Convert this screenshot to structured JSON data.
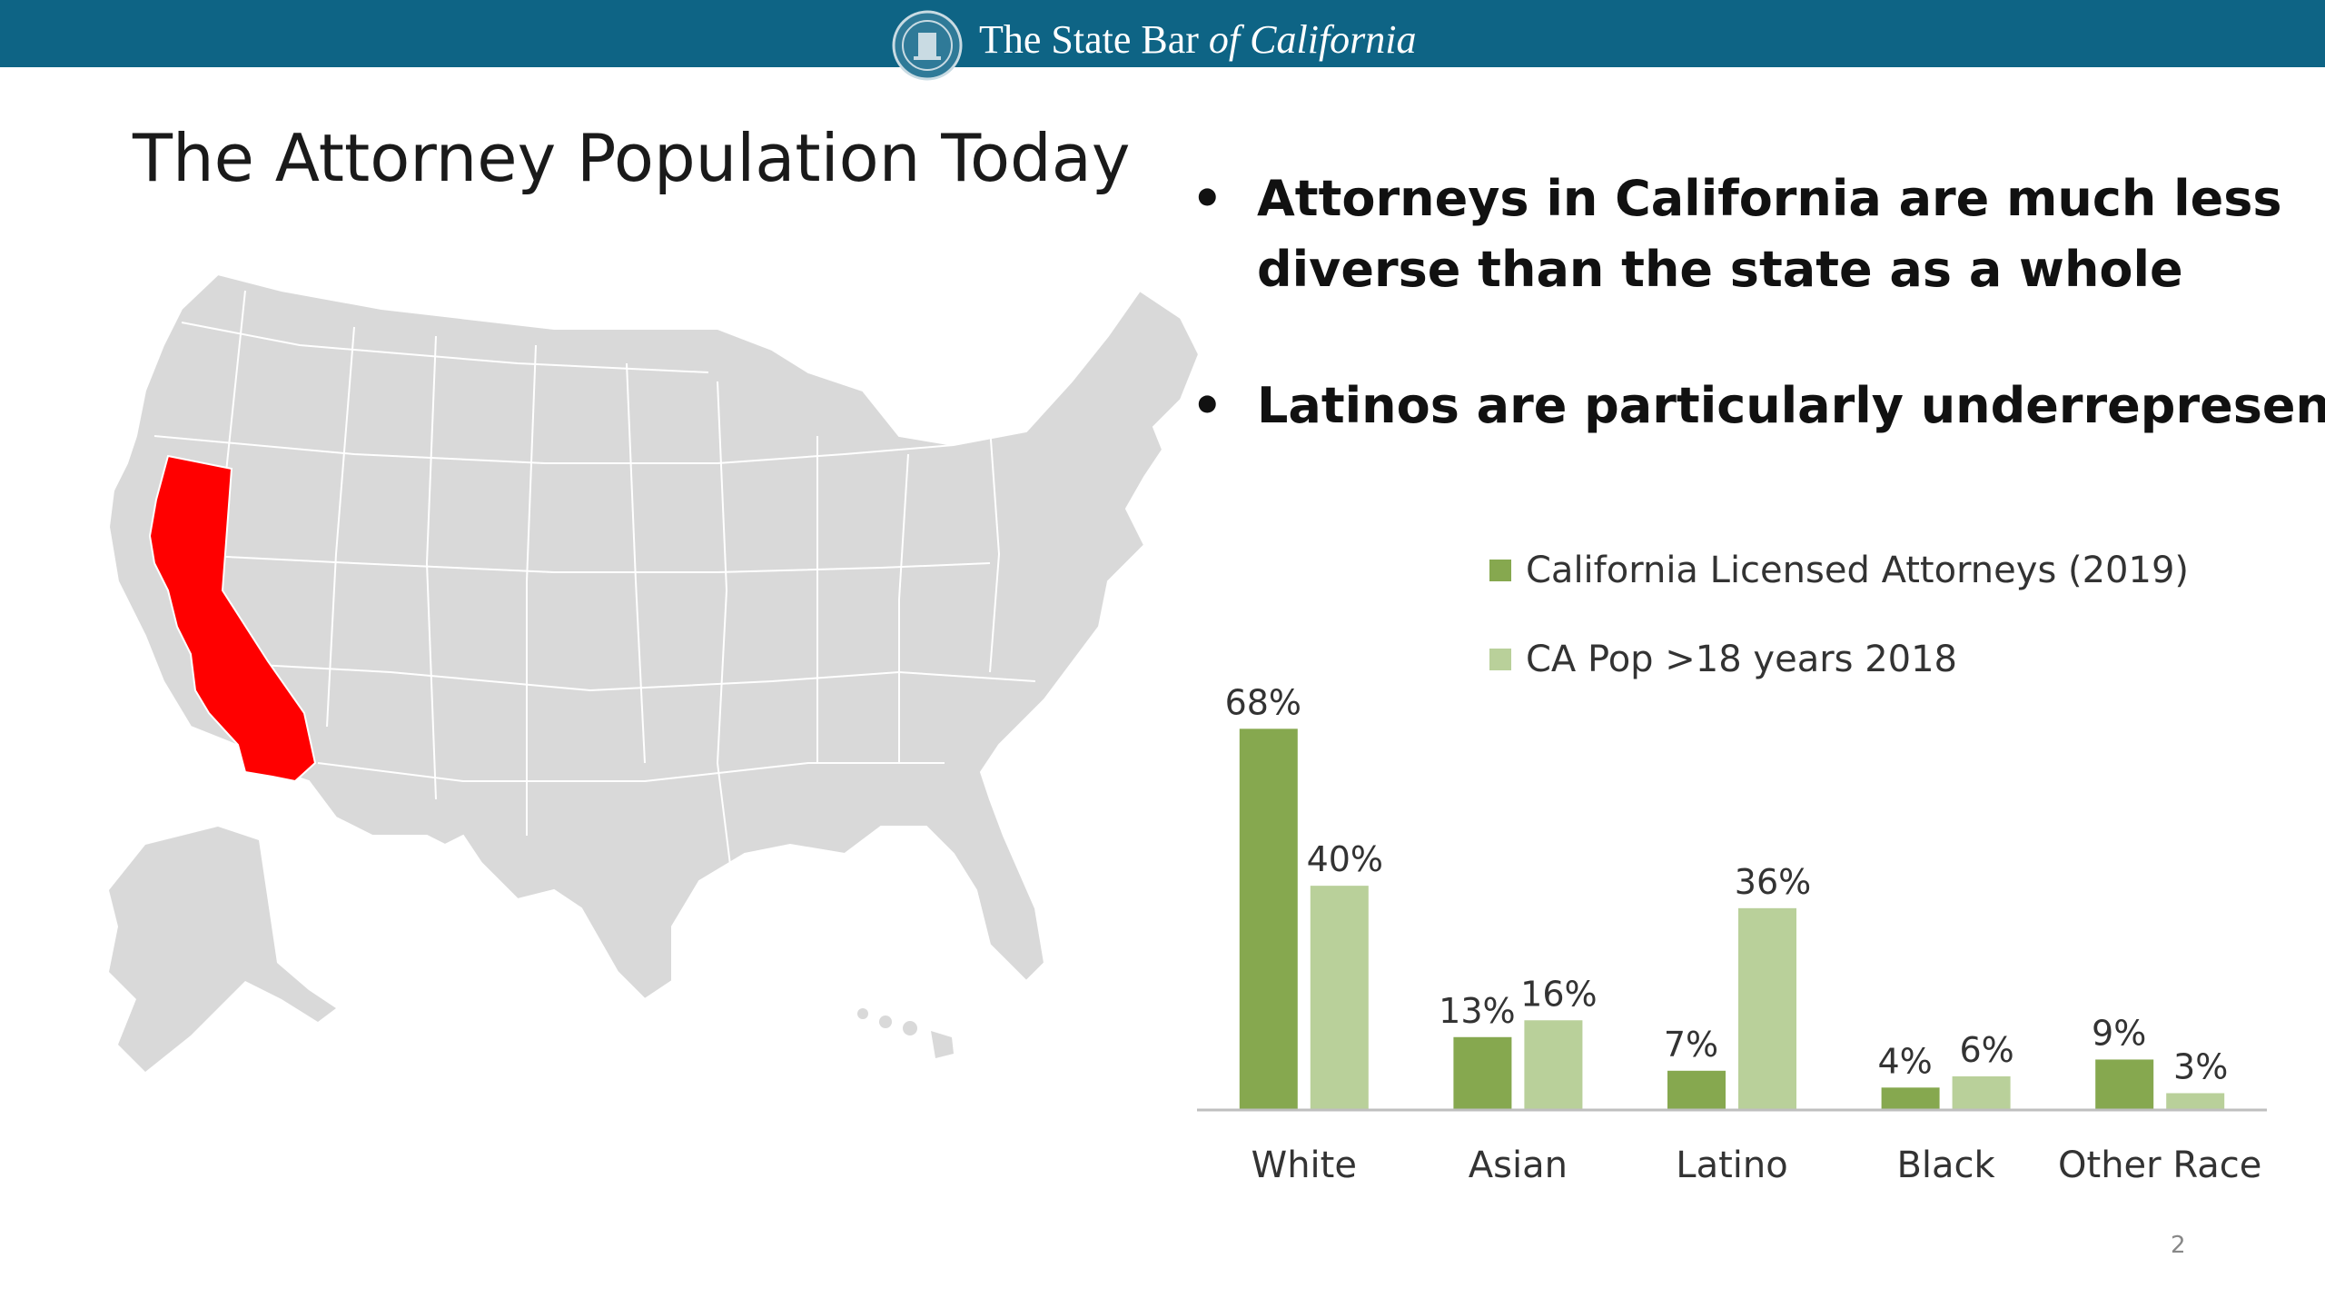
{
  "header": {
    "org_prefix": "The State Bar",
    "org_suffix": "of California",
    "brand_color": "#0e6485",
    "seal_icon": "state-bar-seal-icon"
  },
  "slide": {
    "title": "The Attorney Population Today",
    "bullets": [
      "Attorneys in California are much less diverse than the state as a whole",
      "Latinos are particularly underrepresented"
    ],
    "page_number": "2"
  },
  "map": {
    "description_icon": "us-map-icon",
    "highlight_color": "#ff0000",
    "base_color": "#d9d9d9"
  },
  "chart_data": {
    "type": "bar",
    "categories": [
      "White",
      "Asian",
      "Latino",
      "Black",
      "Other Race"
    ],
    "series": [
      {
        "name": "California Licensed Attorneys (2019)",
        "values": [
          68,
          13,
          7,
          4,
          9
        ],
        "labels": [
          "68%",
          "13%",
          "7%",
          "4%",
          "9%"
        ],
        "color": "#86a84f"
      },
      {
        "name": "CA Pop >18 years 2018",
        "values": [
          40,
          16,
          36,
          6,
          3
        ],
        "labels": [
          "40%",
          "16%",
          "36%",
          "6%",
          "3%"
        ],
        "color": "#b9d09a"
      }
    ],
    "ylim": [
      0,
      70
    ],
    "grid": false,
    "legend_position": "top",
    "value_unit": "%"
  }
}
